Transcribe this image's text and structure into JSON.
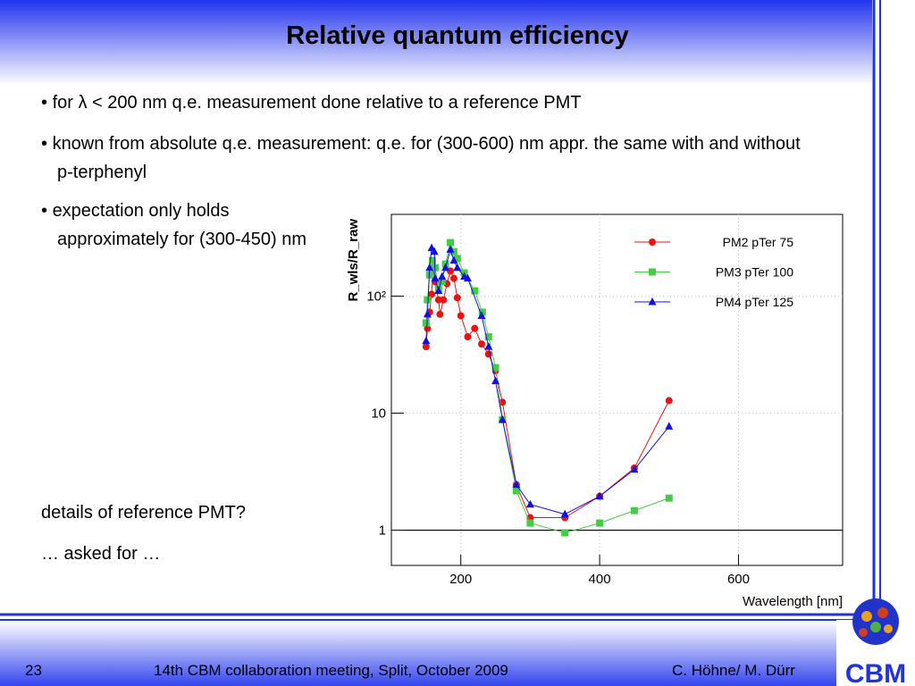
{
  "title": "Relative quantum efficiency",
  "bullets": [
    "for λ < 200 nm q.e. measurement done relative to a reference PMT",
    "known from absolute q.e. measurement: q.e. for (300-600) nm appr. the same with and without p-terphenyl",
    "expectation only holds approximately for (300-450) nm"
  ],
  "notes": [
    "details of reference PMT?",
    "… asked for …"
  ],
  "footer": {
    "page": "23",
    "event": "14th CBM collaboration meeting, Split, October 2009",
    "authors": "C. Höhne/ M. Dürr",
    "logo": "CBM"
  },
  "chart_data": {
    "type": "line",
    "xlabel": "Wavelength [nm]",
    "ylabel": "R_wls/R_raw",
    "xlim": [
      100,
      750
    ],
    "ylim": [
      0.5,
      500
    ],
    "ylog": true,
    "grid": true,
    "legend": "upper right",
    "hline": 1,
    "xticks": [
      200,
      400,
      600
    ],
    "yticks": [
      1,
      10,
      {
        "value": 100,
        "label": "10²"
      }
    ],
    "series": [
      {
        "name": "PM2 pTer 75",
        "color": "#ee1111",
        "marker": "circle",
        "x": [
          150,
          152,
          155,
          158,
          160,
          163,
          168,
          170,
          175,
          180,
          185,
          190,
          195,
          200,
          210,
          220,
          230,
          240,
          250,
          260,
          280,
          300,
          350,
          400,
          450,
          500
        ],
        "values": [
          37,
          53,
          73,
          104,
          175,
          133,
          93,
          70,
          93,
          128,
          164,
          142,
          97,
          68,
          45,
          53,
          39,
          32,
          23,
          12.4,
          2.45,
          1.28,
          1.28,
          1.95,
          3.4,
          12.8
        ]
      },
      {
        "name": "PM3 pTer 100",
        "color": "#44cc44",
        "marker": "square",
        "x": [
          150,
          152,
          155,
          159,
          163,
          168,
          173,
          178,
          185,
          190,
          195,
          205,
          220,
          231,
          240,
          250,
          260,
          280,
          300,
          350,
          400,
          450,
          500
        ],
        "values": [
          59,
          93,
          152,
          202,
          175,
          115,
          133,
          188,
          287,
          240,
          210,
          158,
          111,
          73,
          45,
          24.5,
          8.8,
          2.17,
          1.15,
          0.95,
          1.15,
          1.47,
          1.88
        ]
      },
      {
        "name": "PM4 pTer 125",
        "color": "#1111dd",
        "marker": "triangle",
        "x": [
          150,
          152,
          155,
          158,
          162,
          163,
          168,
          173,
          178,
          185,
          190,
          195,
          205,
          210,
          230,
          240,
          250,
          260,
          280,
          300,
          350,
          400,
          450,
          500
        ],
        "values": [
          41.5,
          70,
          175,
          258,
          240,
          142,
          111,
          147,
          175,
          250,
          202,
          175,
          147,
          142,
          68,
          37,
          18.8,
          8.8,
          2.45,
          1.66,
          1.37,
          1.95,
          3.3,
          7.7
        ]
      }
    ]
  }
}
